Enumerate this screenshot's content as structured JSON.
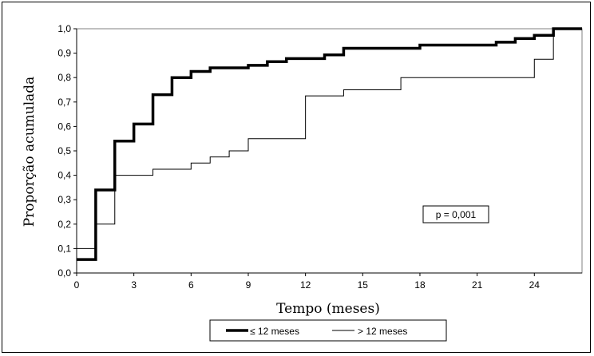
{
  "chart_data": {
    "type": "line",
    "step": true,
    "xlabel": "Tempo (meses)",
    "ylabel": "Proporção acumulada",
    "xlim": [
      0,
      26.5
    ],
    "ylim": [
      0,
      1.0
    ],
    "xticks": [
      0,
      3,
      6,
      9,
      12,
      15,
      18,
      21,
      24
    ],
    "xtick_labels": [
      "0",
      "3",
      "6",
      "9",
      "12",
      "15",
      "18",
      "21",
      "24"
    ],
    "yticks": [
      0,
      0.1,
      0.2,
      0.3,
      0.4,
      0.5,
      0.6,
      0.7,
      0.8,
      0.9,
      1.0
    ],
    "ytick_labels": [
      "0,0",
      "0,1",
      "0,2",
      "0,3",
      "0,4",
      "0,5",
      "0,6",
      "0,7",
      "0,8",
      "0,9",
      "1,0"
    ],
    "grid": false,
    "legend_position": "bottom",
    "annotation": "p = 0,001",
    "series": [
      {
        "name": "≤ 12 meses",
        "style": "thick",
        "color": "#000000",
        "x": [
          0,
          1,
          2,
          3,
          4,
          5,
          6,
          7,
          8,
          9,
          10,
          11,
          13,
          14,
          17,
          18,
          22,
          23,
          24,
          25,
          26.5
        ],
        "y": [
          0.055,
          0.34,
          0.54,
          0.61,
          0.73,
          0.8,
          0.825,
          0.84,
          0.84,
          0.85,
          0.865,
          0.878,
          0.893,
          0.92,
          0.92,
          0.933,
          0.945,
          0.96,
          0.973,
          1.0,
          1.0
        ]
      },
      {
        "name": "> 12 meses",
        "style": "thin",
        "color": "#000000",
        "x": [
          0,
          1,
          2,
          4,
          6,
          7,
          8,
          9,
          12,
          14,
          17,
          24,
          25,
          26.5
        ],
        "y": [
          0.1,
          0.2,
          0.4,
          0.425,
          0.45,
          0.475,
          0.5,
          0.55,
          0.725,
          0.75,
          0.8,
          0.875,
          1.0,
          1.0
        ]
      }
    ]
  }
}
